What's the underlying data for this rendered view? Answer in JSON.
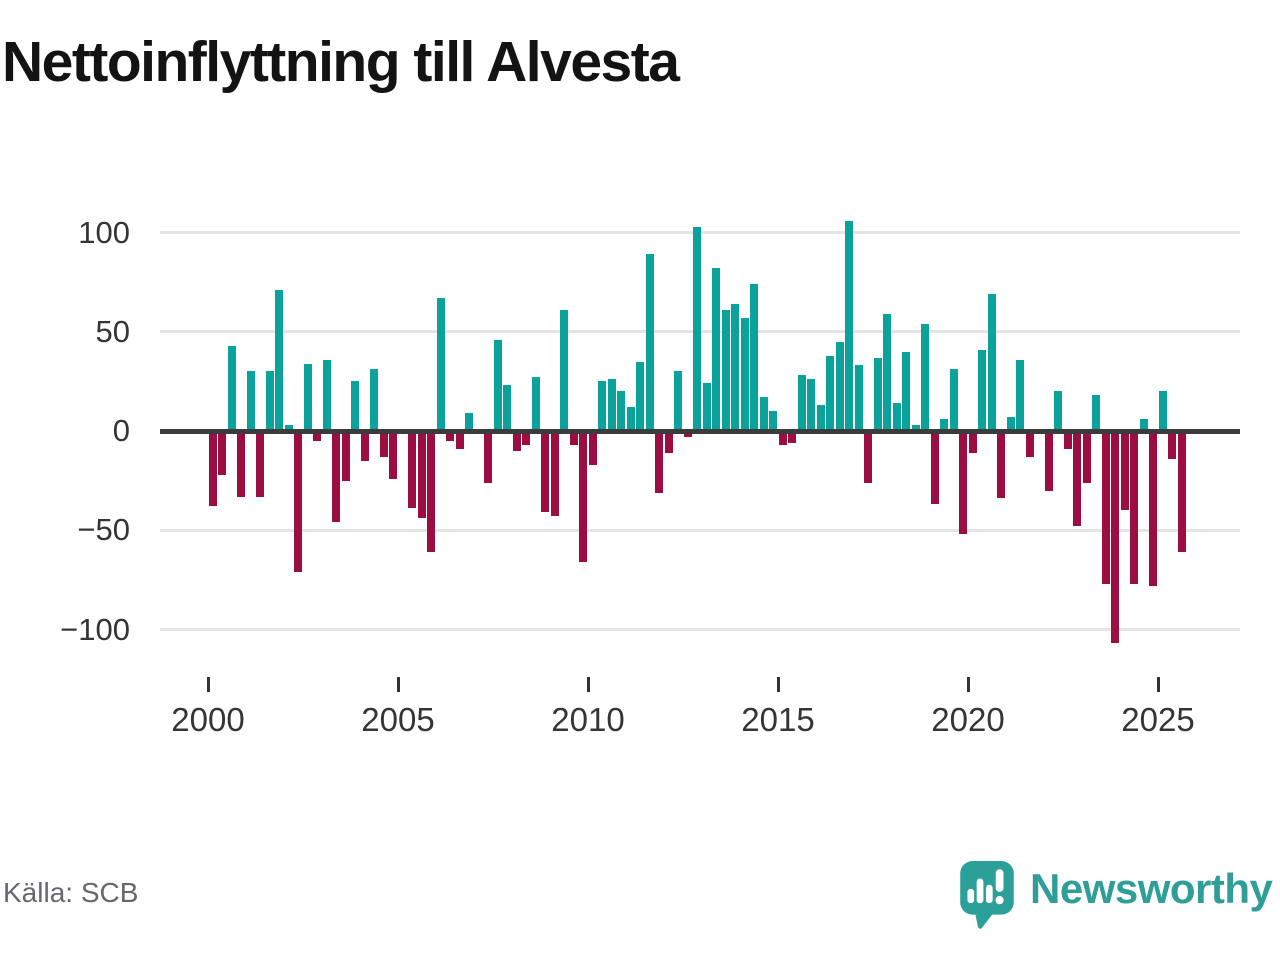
{
  "title": "Nettoinflyttning till Alvesta",
  "source": "Källa: SCB",
  "logo": {
    "brand": "Newsworthy",
    "icon": "newsworthy-chart-bubble-icon"
  },
  "chart_data": {
    "type": "bar",
    "title": "Nettoinflyttning till Alvesta",
    "frequency": "quarterly",
    "start_period": "2000 Q1",
    "end_period": "2025 Q3",
    "x_tick_labels": [
      "2000",
      "2005",
      "2010",
      "2015",
      "2020",
      "2025"
    ],
    "y_ticks": [
      100,
      50,
      0,
      -50,
      -100
    ],
    "y_tick_labels": [
      "100",
      "50",
      "0",
      "−50",
      "−100"
    ],
    "ylim": [
      -115,
      115
    ],
    "grid": "horizontal",
    "legend": "none",
    "colors": {
      "positive": "#0aa29a",
      "negative": "#9c0d41",
      "zero_line": "#3b3b3b",
      "gridline": "#e4e4e4",
      "brand_teal": "#2f9e98"
    },
    "series": [
      {
        "name": "Nettoinflyttning",
        "values": [
          -38,
          -22,
          43,
          -33,
          30,
          -33,
          30,
          71,
          3,
          -71,
          34,
          -5,
          36,
          -46,
          -25,
          25,
          -15,
          31,
          -13,
          -24,
          0,
          -39,
          -44,
          -61,
          67,
          -5,
          -9,
          9,
          0,
          -26,
          46,
          23,
          -10,
          -7,
          27,
          -41,
          -43,
          61,
          -7,
          -66,
          -17,
          25,
          26,
          20,
          12,
          35,
          89,
          -31,
          -11,
          30,
          -3,
          103,
          24,
          82,
          61,
          64,
          57,
          74,
          17,
          10,
          -7,
          -6,
          28,
          26,
          13,
          38,
          45,
          106,
          33,
          -26,
          37,
          59,
          14,
          40,
          3,
          54,
          -37,
          6,
          31,
          -52,
          -11,
          41,
          69,
          -34,
          7,
          36,
          -13,
          0,
          -30,
          20,
          -9,
          -48,
          -26,
          18,
          -77,
          -107,
          -40,
          -77,
          6,
          -78,
          20,
          -14,
          -61
        ]
      }
    ]
  }
}
